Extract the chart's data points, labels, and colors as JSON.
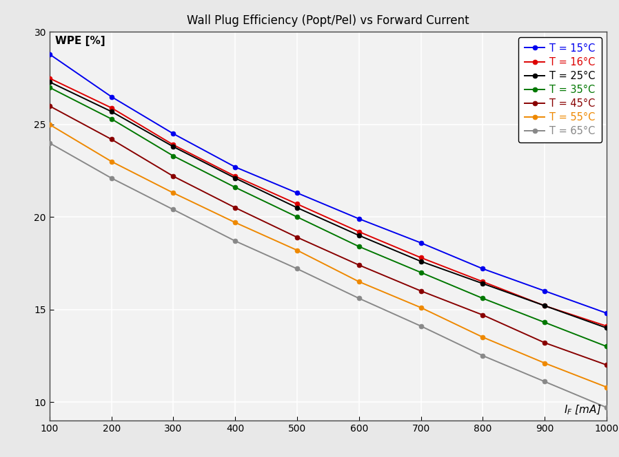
{
  "title": "Wall Plug Efficiency (Popt/Pel) vs Forward Current",
  "xlim": [
    100,
    1000
  ],
  "ylim": [
    9.0,
    30.0
  ],
  "yticks": [
    10,
    15,
    20,
    25,
    30
  ],
  "xticks": [
    100,
    200,
    300,
    400,
    500,
    600,
    700,
    800,
    900,
    1000
  ],
  "bg_color": "#f0f0f0",
  "plot_bg": "#f0f0f0",
  "series": [
    {
      "label": "T = 15°C",
      "color": "#0000EE",
      "x": [
        100,
        200,
        300,
        400,
        500,
        600,
        700,
        800,
        900,
        1000
      ],
      "y": [
        28.8,
        26.5,
        24.5,
        22.7,
        21.3,
        19.9,
        18.6,
        17.2,
        16.0,
        14.8
      ]
    },
    {
      "label": "T = 16°C",
      "color": "#DD0000",
      "x": [
        100,
        200,
        300,
        400,
        500,
        600,
        700,
        800,
        900,
        1000
      ],
      "y": [
        27.5,
        25.9,
        23.9,
        22.2,
        20.7,
        19.2,
        17.8,
        16.5,
        15.2,
        14.1
      ]
    },
    {
      "label": "T = 25°C",
      "color": "#000000",
      "x": [
        100,
        200,
        300,
        400,
        500,
        600,
        700,
        800,
        900,
        1000
      ],
      "y": [
        27.3,
        25.7,
        23.8,
        22.1,
        20.5,
        19.0,
        17.6,
        16.4,
        15.2,
        14.0
      ]
    },
    {
      "label": "T = 35°C",
      "color": "#007700",
      "x": [
        100,
        200,
        300,
        400,
        500,
        600,
        700,
        800,
        900,
        1000
      ],
      "y": [
        27.0,
        25.3,
        23.3,
        21.6,
        20.0,
        18.4,
        17.0,
        15.6,
        14.3,
        13.0
      ]
    },
    {
      "label": "T = 45°C",
      "color": "#880000",
      "x": [
        100,
        200,
        300,
        400,
        500,
        600,
        700,
        800,
        900,
        1000
      ],
      "y": [
        26.0,
        24.2,
        22.2,
        20.5,
        18.9,
        17.4,
        16.0,
        14.7,
        13.2,
        12.0
      ]
    },
    {
      "label": "T = 55°C",
      "color": "#EE8800",
      "x": [
        100,
        200,
        300,
        400,
        500,
        600,
        700,
        800,
        900,
        1000
      ],
      "y": [
        25.0,
        23.0,
        21.3,
        19.7,
        18.2,
        16.5,
        15.1,
        13.5,
        12.1,
        10.8
      ]
    },
    {
      "label": "T = 65°C",
      "color": "#888888",
      "x": [
        100,
        200,
        300,
        400,
        500,
        600,
        700,
        800,
        900,
        1000
      ],
      "y": [
        24.0,
        22.1,
        20.4,
        18.7,
        17.2,
        15.6,
        14.1,
        12.5,
        11.1,
        9.7
      ]
    }
  ],
  "marker": "o",
  "markersize": 5,
  "linewidth": 1.4
}
